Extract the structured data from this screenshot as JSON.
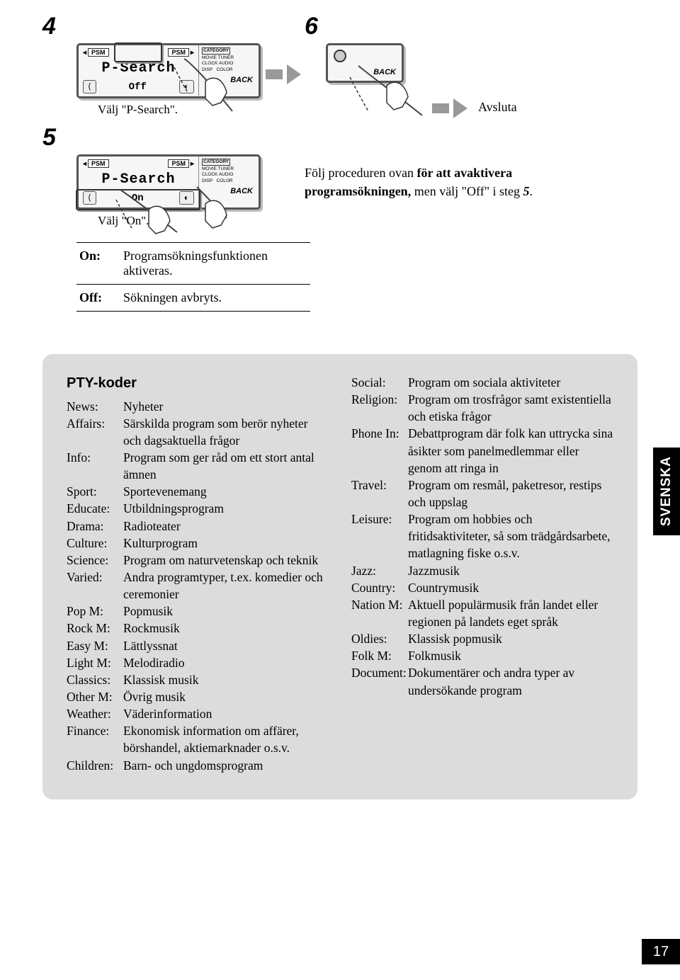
{
  "steps": {
    "s4": "4",
    "s5": "5",
    "s6": "6",
    "caption4": "Välj \"P-Search\".",
    "caption5": "Välj \"On\".",
    "lcd_psearch": "P-Search",
    "lcd_off": "Off",
    "lcd_on": "On",
    "psm": "PSM",
    "category": "CATEGORY",
    "cat_lines": "MOVIE TUNER\nCLOCK AUDIO\nDISP   COLOR",
    "back": "BACK",
    "avsluta": "Avsluta",
    "follow_a": "Följ proceduren ovan ",
    "follow_b": "för att avaktivera programsökningen,",
    "follow_c": " men välj \"Off\" i steg ",
    "follow_d": "5",
    "follow_e": "."
  },
  "def": {
    "on_k": "On:",
    "on_v": "Programsökningsfunktionen aktiveras.",
    "off_k": "Off:",
    "off_v": "Sökningen avbryts."
  },
  "pty": {
    "title": "PTY-koder",
    "left": [
      {
        "k": "News:",
        "v": "Nyheter"
      },
      {
        "k": "Affairs:",
        "v": "Särskilda program som berör nyheter och dagsaktuella frågor"
      },
      {
        "k": "Info:",
        "v": "Program som ger råd om ett stort antal ämnen"
      },
      {
        "k": "Sport:",
        "v": "Sportevenemang"
      },
      {
        "k": "Educate:",
        "v": "Utbildningsprogram"
      },
      {
        "k": "Drama:",
        "v": "Radioteater"
      },
      {
        "k": "Culture:",
        "v": "Kulturprogram"
      },
      {
        "k": "Science:",
        "v": "Program om naturvetenskap och teknik"
      },
      {
        "k": "Varied:",
        "v": "Andra programtyper, t.ex. komedier och ceremonier"
      },
      {
        "k": "Pop M:",
        "v": "Popmusik"
      },
      {
        "k": "Rock M:",
        "v": "Rockmusik"
      },
      {
        "k": "Easy M:",
        "v": "Lättlyssnat"
      },
      {
        "k": "Light M:",
        "v": "Melodiradio"
      },
      {
        "k": "Classics:",
        "v": "Klassisk musik"
      },
      {
        "k": "Other M:",
        "v": "Övrig musik"
      },
      {
        "k": "Weather:",
        "v": "Väderinformation"
      },
      {
        "k": "Finance:",
        "v": "Ekonomisk information om affärer, börshandel, aktiemarknader o.s.v."
      },
      {
        "k": "Children:",
        "v": "Barn- och ungdomsprogram"
      }
    ],
    "right": [
      {
        "k": "Social:",
        "v": "Program om sociala aktiviteter"
      },
      {
        "k": "Religion:",
        "v": "Program om trosfrågor samt existentiella och etiska frågor"
      },
      {
        "k": "Phone In:",
        "v": "Debattprogram där folk kan uttrycka sina åsikter som panelmedlemmar eller genom att ringa in"
      },
      {
        "k": "Travel:",
        "v": "Program om resmål, paketresor, restips och uppslag"
      },
      {
        "k": "Leisure:",
        "v": "Program om hobbies och fritidsaktiviteter, så som trädgårdsarbete, matlagning fiske o.s.v."
      },
      {
        "k": "Jazz:",
        "v": "Jazzmusik"
      },
      {
        "k": "Country:",
        "v": "Countrymusik"
      },
      {
        "k": "Nation M:",
        "v": "Aktuell populärmusik från landet eller regionen på landets eget språk"
      },
      {
        "k": "Oldies:",
        "v": "Klassisk popmusik"
      },
      {
        "k": "Folk M:",
        "v": "Folkmusik"
      },
      {
        "k": "Document:",
        "v": "Dokumentärer och andra typer av undersökande program"
      }
    ]
  },
  "side_tab": "SVENSKA",
  "page_number": "17",
  "colors": {
    "panel_bg": "#dcdcdc",
    "tab_bg": "#000000",
    "arrow": "#999999"
  }
}
